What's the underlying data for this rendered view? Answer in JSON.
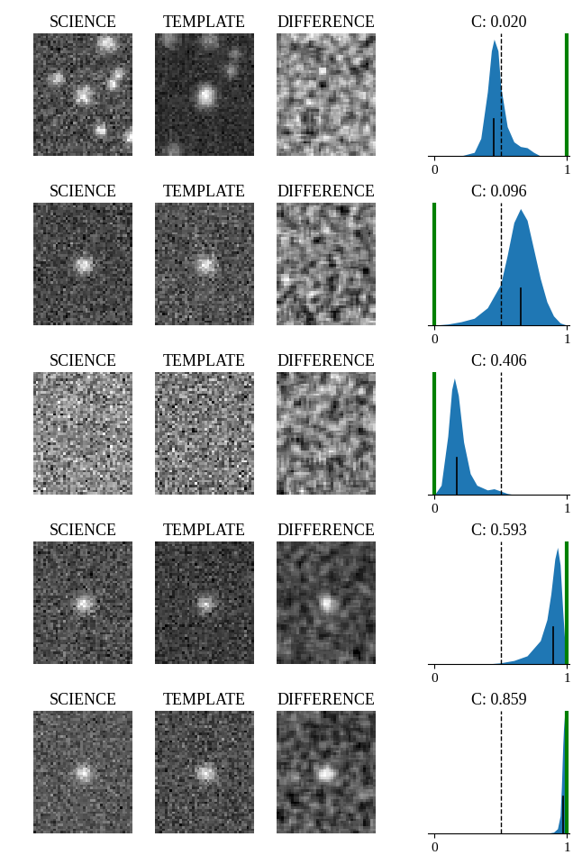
{
  "image_titles": [
    "SCIENCE",
    "TEMPLATE",
    "DIFFERENCE"
  ],
  "chart_data": [
    {
      "type": "area",
      "title": "C: 0.020",
      "color": "#1f77b4",
      "x": [
        0,
        0.2,
        0.3,
        0.35,
        0.4,
        0.43,
        0.45,
        0.48,
        0.5,
        0.55,
        0.6,
        0.65,
        0.7,
        0.75,
        0.8,
        1
      ],
      "values": [
        0,
        0,
        0.03,
        0.15,
        0.55,
        0.9,
        1.0,
        0.9,
        0.6,
        0.25,
        0.12,
        0.08,
        0.07,
        0.03,
        0,
        0
      ],
      "xlim": [
        -0.05,
        1.02
      ],
      "xticks": [
        0,
        1
      ],
      "ylim": [
        0,
        1.05
      ],
      "tick_labels": "x",
      "threshold": 0.5,
      "true_class": 1,
      "median": 0.45
    },
    {
      "type": "area",
      "title": "C: 0.096",
      "color": "#1f77b4",
      "x": [
        0,
        0.1,
        0.2,
        0.3,
        0.4,
        0.5,
        0.55,
        0.6,
        0.65,
        0.7,
        0.75,
        0.8,
        0.85,
        0.9,
        0.95,
        1
      ],
      "values": [
        0,
        0.01,
        0.03,
        0.06,
        0.15,
        0.35,
        0.6,
        0.88,
        1.0,
        0.9,
        0.65,
        0.4,
        0.2,
        0.08,
        0.02,
        0
      ],
      "xlim": [
        -0.05,
        1.02
      ],
      "xticks": [
        0,
        1
      ],
      "ylim": [
        0,
        1.05
      ],
      "tick_labels": "x",
      "threshold": 0.5,
      "true_class": 0,
      "median": 0.65
    },
    {
      "type": "area",
      "title": "C: 0.406",
      "color": "#1f77b4",
      "x": [
        0,
        0.05,
        0.1,
        0.13,
        0.15,
        0.18,
        0.22,
        0.27,
        0.32,
        0.4,
        0.45,
        0.5,
        0.55,
        0.6,
        1
      ],
      "values": [
        0,
        0.08,
        0.5,
        0.9,
        1.0,
        0.85,
        0.45,
        0.18,
        0.08,
        0.04,
        0.05,
        0.03,
        0.01,
        0,
        0
      ],
      "xlim": [
        -0.05,
        1.02
      ],
      "xticks": [
        0,
        1
      ],
      "ylim": [
        0,
        1.05
      ],
      "tick_labels": "x",
      "threshold": 0.5,
      "true_class": 0,
      "median": 0.17
    },
    {
      "type": "area",
      "title": "C: 0.593",
      "color": "#1f77b4",
      "x": [
        0.4,
        0.5,
        0.6,
        0.7,
        0.8,
        0.85,
        0.88,
        0.91,
        0.93,
        0.95,
        0.97,
        0.99,
        1
      ],
      "values": [
        0,
        0.01,
        0.03,
        0.07,
        0.2,
        0.38,
        0.6,
        0.9,
        1.0,
        0.85,
        0.45,
        0.1,
        0
      ],
      "xlim": [
        -0.05,
        1.02
      ],
      "xticks": [
        0,
        1
      ],
      "ylim": [
        0,
        1.05
      ],
      "tick_labels": "x",
      "threshold": 0.5,
      "true_class": 1,
      "median": 0.9
    },
    {
      "type": "area",
      "title": "C: 0.859",
      "color": "#1f77b4",
      "x": [
        0.85,
        0.9,
        0.93,
        0.95,
        0.96,
        0.97,
        0.98,
        0.99,
        1
      ],
      "values": [
        0,
        0.01,
        0.04,
        0.15,
        0.4,
        0.75,
        1.0,
        0.6,
        0
      ],
      "xlim": [
        -0.05,
        1.02
      ],
      "xticks": [
        0,
        1
      ],
      "ylim": [
        0,
        1.05
      ],
      "tick_labels": "x",
      "threshold": 0.5,
      "true_class": 1,
      "median": 0.97
    }
  ]
}
